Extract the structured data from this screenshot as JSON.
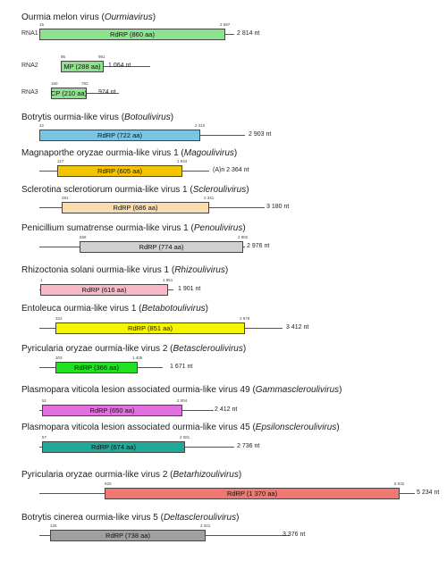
{
  "entries": [
    {
      "name": "Ourmia melon virus",
      "genus": "Ourmiavirus",
      "top": 14,
      "segments": [
        {
          "label": "RNA1",
          "start": "15",
          "end": "2 597",
          "orf": "RdRP  (860 aa)",
          "length": "2 814 nt",
          "color": "#8ee28e"
        },
        {
          "label": "RNA2",
          "start": "95",
          "end": "961",
          "orf": "MP  (288 aa)",
          "length": "1 064 nt",
          "color": "#8ee28e"
        },
        {
          "label": "RNA3",
          "start": "150",
          "end": "782",
          "orf": "CP  (210 aa)",
          "length": "974 nt",
          "color": "#8ee28e"
        }
      ]
    },
    {
      "name": "Botrytis ourmia-like virus",
      "genus": "Botoulivirus",
      "segments": [
        {
          "start": "42",
          "end": "2 210",
          "orf": "RdRP  (722 aa)",
          "length": "2 903 nt",
          "color": "#7cc4e4"
        }
      ]
    },
    {
      "name": "Magnaporthe oryzae ourmia-like virus 1",
      "genus": "Magoulivirus",
      "segments": [
        {
          "start": "117",
          "end": "1 934",
          "orf": "RdRP  (605 aa)",
          "length": "(A)n 2 364 nt",
          "color": "#f5c400"
        }
      ]
    },
    {
      "name": "Sclerotina sclerotiorum ourmia-like virus 1",
      "genus": "Scleroulivirus",
      "segments": [
        {
          "start": "281",
          "end": "2 341",
          "orf": "RdRP  (686 aa)",
          "length": "3 180 nt",
          "color": "#f7dcb0"
        }
      ]
    },
    {
      "name": "Penicillium sumatrense ourmia-like virus 1",
      "genus": "Penoulivirus",
      "segments": [
        {
          "start": "558",
          "end": "2 882",
          "orf": "RdRP  (774 aa)",
          "length": "2 976 nt",
          "color": "#d0d0d0"
        }
      ]
    },
    {
      "name": "Rhizoctonia solani ourmia-like virus 1",
      "genus": "Rhizoulivirus",
      "segments": [
        {
          "start": "1",
          "end": "1 851",
          "orf": "RdRP  (616 aa)",
          "length": "1 901 nt",
          "color": "#f8b8c8"
        }
      ]
    },
    {
      "name": "Entoleuca ourmia-like virus 1",
      "genus": "Betabotoulivirus",
      "segments": [
        {
          "start": "322",
          "end": "2 878",
          "orf": "RdRP  (851 aa)",
          "length": "3 412 nt",
          "color": "#f5f500"
        }
      ]
    },
    {
      "name": "Pyricularia oryzae ourmia-like virus 2",
      "genus": "Betascleroulivirus",
      "segments": [
        {
          "start": "303",
          "end": "1 405",
          "orf": "RdRP  (366 aa)",
          "length": "1 671 nt",
          "color": "#22e022"
        }
      ]
    },
    {
      "name": "Plasmopara viticola lesion associated ourmia-like virus 49",
      "genus": "Gammascleroulivirus",
      "segments": [
        {
          "start": "51",
          "end": "2 004",
          "orf": "RdRP  (650 aa)",
          "length": "2 412 nt",
          "color": "#e070e0"
        }
      ]
    },
    {
      "name": "Plasmopara viticola lesion associated ourmia-like virus 45",
      "genus": "Epsilonscleroulivirus",
      "segments": [
        {
          "start": "57",
          "end": "2 081",
          "orf": "RdRP  (674 aa)",
          "length": "2 736 nt",
          "color": "#20a898"
        }
      ]
    },
    {
      "name": "Pyricularia oryzae ourmia-like virus 2",
      "genus": "Betarhizoulivirus",
      "segments": [
        {
          "start": "920",
          "end": "5 032",
          "orf": "RdRP  (1 370 aa)",
          "length": "5 234 nt",
          "color": "#f07870"
        }
      ]
    },
    {
      "name": "Botrytis cinerea ourmia-like virus 5",
      "genus": "Deltascleroulivirus",
      "segments": [
        {
          "start": "125",
          "end": "2 341",
          "orf": "RdRP  (738 aa)",
          "length": "3 376 nt",
          "color": "#a0a0a0"
        }
      ]
    }
  ]
}
